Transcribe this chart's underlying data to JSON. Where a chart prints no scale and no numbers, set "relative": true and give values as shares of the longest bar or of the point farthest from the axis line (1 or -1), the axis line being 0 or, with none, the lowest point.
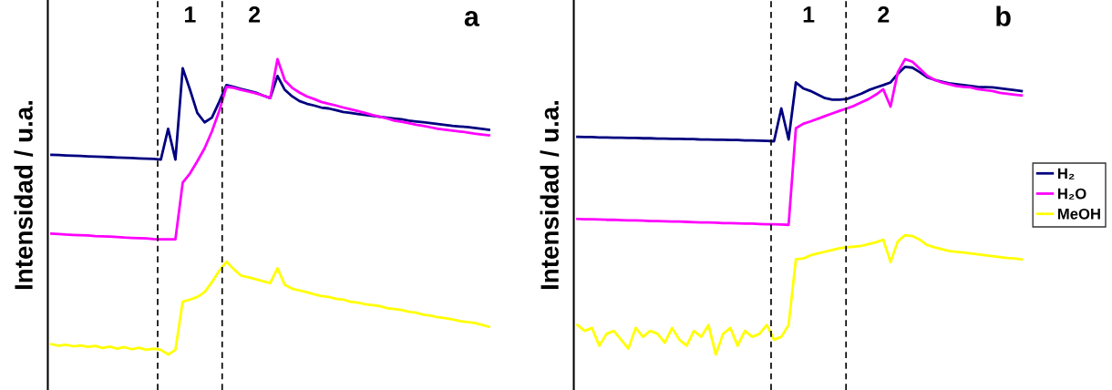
{
  "chart_data": [
    {
      "type": "line",
      "title": "a",
      "ylabel": "Intensidad / u.a.",
      "relative": true,
      "line_style": "solid",
      "marker": "none",
      "categories": [
        null,
        null,
        null,
        null,
        null,
        null,
        null,
        null,
        null,
        null,
        null,
        null,
        null,
        null,
        null,
        null,
        null,
        null,
        null,
        null,
        null,
        null,
        null,
        null,
        null,
        null,
        null,
        null,
        null,
        null,
        null,
        null,
        null,
        null,
        null,
        null,
        null,
        null,
        null,
        null,
        null,
        null,
        null,
        null,
        null,
        null,
        null,
        null,
        null,
        null,
        null,
        null,
        null,
        null,
        null,
        null,
        null,
        null,
        null,
        null,
        null
      ],
      "annotations": [
        "1",
        "2"
      ],
      "series": [
        {
          "color": "#000080",
          "values": [
            0.676,
            0.675,
            0.674,
            0.673,
            0.672,
            0.671,
            0.67,
            0.669,
            0.668,
            0.667,
            0.666,
            0.665,
            0.664,
            0.663,
            0.662,
            0.66,
            0.764,
            0.66,
            0.969,
            0.896,
            0.818,
            0.786,
            0.802,
            0.855,
            0.912,
            0.906,
            0.899,
            0.893,
            0.887,
            0.877,
            0.868,
            0.943,
            0.896,
            0.874,
            0.858,
            0.849,
            0.843,
            0.836,
            0.833,
            0.827,
            0.821,
            0.818,
            0.814,
            0.811,
            0.808,
            0.805,
            0.802,
            0.799,
            0.796,
            0.792,
            0.789,
            0.786,
            0.783,
            0.78,
            0.777,
            0.774,
            0.772,
            0.77,
            0.767,
            0.764,
            0.761
          ]
        },
        {
          "color": "#ff00ff",
          "values": [
            0.409,
            0.408,
            0.406,
            0.405,
            0.404,
            0.403,
            0.401,
            0.4,
            0.399,
            0.398,
            0.396,
            0.395,
            0.394,
            0.393,
            0.391,
            0.39,
            0.39,
            0.39,
            0.582,
            0.613,
            0.654,
            0.698,
            0.755,
            0.824,
            0.906,
            0.903,
            0.896,
            0.89,
            0.884,
            0.877,
            0.868,
            1.0,
            0.928,
            0.903,
            0.887,
            0.874,
            0.865,
            0.855,
            0.849,
            0.843,
            0.836,
            0.83,
            0.824,
            0.818,
            0.811,
            0.805,
            0.799,
            0.792,
            0.788,
            0.783,
            0.778,
            0.774,
            0.769,
            0.764,
            0.761,
            0.758,
            0.755,
            0.752,
            0.748,
            0.745,
            0.742
          ]
        },
        {
          "color": "#ffff00",
          "values": [
            0.035,
            0.03,
            0.033,
            0.028,
            0.031,
            0.026,
            0.029,
            0.022,
            0.027,
            0.02,
            0.025,
            0.018,
            0.023,
            0.016,
            0.02,
            0.016,
            0.0,
            0.016,
            0.179,
            0.186,
            0.195,
            0.211,
            0.245,
            0.283,
            0.314,
            0.289,
            0.267,
            0.261,
            0.255,
            0.248,
            0.242,
            0.292,
            0.236,
            0.223,
            0.217,
            0.211,
            0.204,
            0.198,
            0.195,
            0.189,
            0.186,
            0.179,
            0.176,
            0.17,
            0.167,
            0.164,
            0.157,
            0.154,
            0.151,
            0.145,
            0.142,
            0.135,
            0.132,
            0.126,
            0.123,
            0.119,
            0.113,
            0.11,
            0.107,
            0.101,
            0.094
          ]
        }
      ]
    },
    {
      "type": "line",
      "title": "b",
      "ylabel": "Intensidad / u.a.",
      "relative": true,
      "legend": "right",
      "line_style": "solid",
      "marker": "none",
      "categories": [
        null,
        null,
        null,
        null,
        null,
        null,
        null,
        null,
        null,
        null,
        null,
        null,
        null,
        null,
        null,
        null,
        null,
        null,
        null,
        null,
        null,
        null,
        null,
        null,
        null,
        null,
        null,
        null,
        null,
        null,
        null,
        null,
        null,
        null,
        null,
        null,
        null,
        null,
        null,
        null,
        null,
        null,
        null,
        null,
        null,
        null,
        null,
        null,
        null,
        null,
        null,
        null,
        null,
        null,
        null,
        null,
        null,
        null,
        null,
        null,
        null,
        null
      ],
      "annotations": [
        "1",
        "2"
      ],
      "series": [
        {
          "name": "H₂",
          "color": "#000080",
          "values": [
            0.737,
            0.736,
            0.736,
            0.735,
            0.735,
            0.734,
            0.734,
            0.733,
            0.733,
            0.732,
            0.732,
            0.731,
            0.731,
            0.73,
            0.73,
            0.729,
            0.729,
            0.728,
            0.728,
            0.727,
            0.727,
            0.726,
            0.726,
            0.725,
            0.725,
            0.724,
            0.723,
            0.722,
            0.833,
            0.728,
            0.921,
            0.901,
            0.892,
            0.88,
            0.868,
            0.863,
            0.863,
            0.865,
            0.874,
            0.883,
            0.895,
            0.904,
            0.912,
            0.921,
            0.95,
            0.974,
            0.971,
            0.956,
            0.939,
            0.93,
            0.924,
            0.918,
            0.915,
            0.912,
            0.909,
            0.906,
            0.905,
            0.904,
            0.901,
            0.898,
            0.895,
            0.892
          ]
        },
        {
          "name": "H₂O",
          "color": "#ff00ff",
          "values": [
            0.459,
            0.458,
            0.458,
            0.457,
            0.456,
            0.456,
            0.455,
            0.454,
            0.454,
            0.453,
            0.452,
            0.452,
            0.451,
            0.45,
            0.45,
            0.449,
            0.448,
            0.447,
            0.447,
            0.446,
            0.445,
            0.445,
            0.444,
            0.443,
            0.443,
            0.442,
            0.441,
            0.441,
            0.44,
            0.439,
            0.766,
            0.781,
            0.789,
            0.798,
            0.807,
            0.816,
            0.825,
            0.833,
            0.842,
            0.854,
            0.865,
            0.88,
            0.898,
            0.839,
            0.956,
            1.0,
            0.991,
            0.968,
            0.944,
            0.93,
            0.921,
            0.915,
            0.909,
            0.906,
            0.904,
            0.898,
            0.895,
            0.892,
            0.886,
            0.883,
            0.88,
            0.877
          ]
        },
        {
          "name": "MeOH",
          "color": "#ffff00",
          "values": [
            0.1,
            0.08,
            0.09,
            0.03,
            0.07,
            0.08,
            0.05,
            0.02,
            0.09,
            0.06,
            0.08,
            0.07,
            0.04,
            0.09,
            0.05,
            0.03,
            0.08,
            0.06,
            0.1,
            0.0,
            0.07,
            0.09,
            0.03,
            0.08,
            0.06,
            0.07,
            0.1,
            0.05,
            0.06,
            0.1,
            0.322,
            0.325,
            0.336,
            0.342,
            0.348,
            0.354,
            0.36,
            0.363,
            0.365,
            0.368,
            0.374,
            0.38,
            0.389,
            0.313,
            0.383,
            0.404,
            0.401,
            0.389,
            0.371,
            0.363,
            0.357,
            0.351,
            0.348,
            0.345,
            0.342,
            0.339,
            0.336,
            0.333,
            0.33,
            0.327,
            0.325,
            0.322
          ]
        }
      ]
    }
  ]
}
